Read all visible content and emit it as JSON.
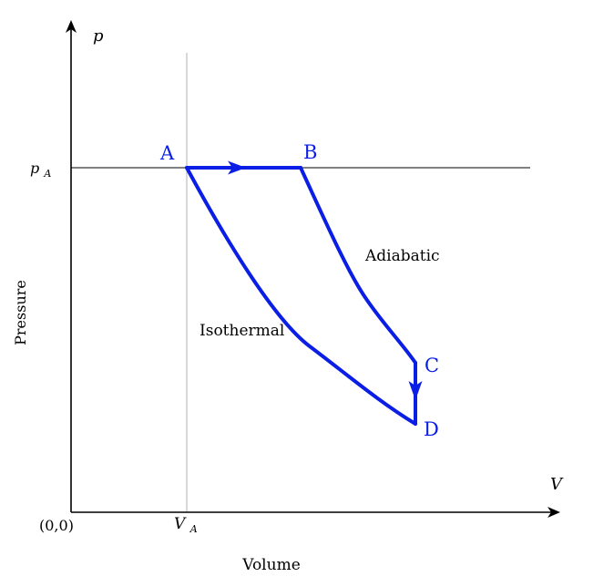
{
  "axes": {
    "y_symbol": "p",
    "x_symbol": "V",
    "y_label": "Pressure",
    "x_label": "Volume",
    "origin_label": "(0,0)"
  },
  "reference": {
    "p_label_main": "p",
    "p_label_sub": "A",
    "v_label_main": "V",
    "v_label_sub": "A"
  },
  "points": {
    "A": "A",
    "B": "B",
    "C": "C",
    "D": "D"
  },
  "processes": {
    "adiabatic": "Adiabatic",
    "isothermal": "Isothermal"
  },
  "colors": {
    "cycle": "#0a1ee6",
    "axis": "#000000",
    "guide_vertical": "#b0b0b0",
    "guide_horizontal": "#000000"
  }
}
